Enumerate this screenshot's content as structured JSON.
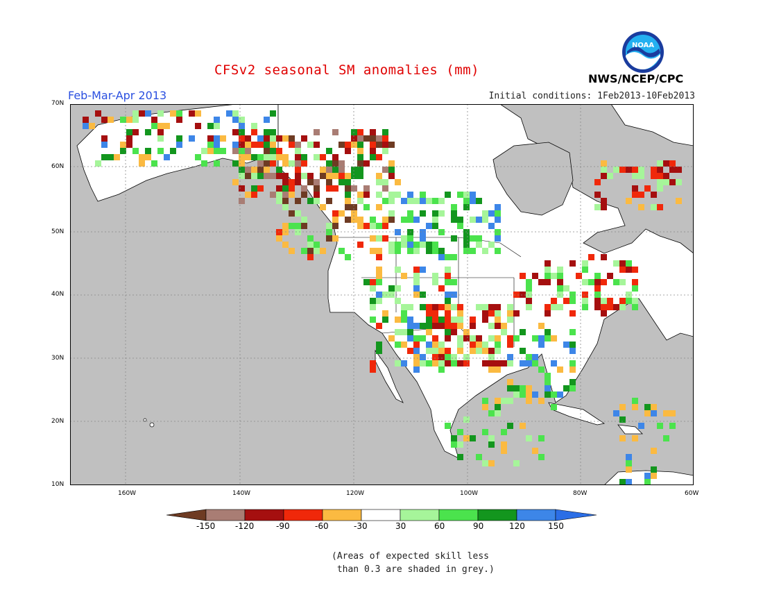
{
  "title": "CFSv2 seasonal SM anomalies (mm)",
  "period": "Feb-Mar-Apr 2013",
  "initial_conditions": "Initial conditions: 1Feb2013-10Feb2013",
  "organization": "NWS/NCEP/CPC",
  "logo_text": "NOAA",
  "lat_labels": [
    "70N",
    "60N",
    "50N",
    "40N",
    "30N",
    "20N",
    "10N"
  ],
  "lon_labels": [
    "160W",
    "140W",
    "120W",
    "100W",
    "80W",
    "60W"
  ],
  "legend": {
    "labels": [
      "-150",
      "-120",
      "-90",
      "-60",
      "-30",
      "30",
      "60",
      "90",
      "120",
      "150"
    ],
    "colors": [
      "#6e3b23",
      "#a97d74",
      "#a50f0f",
      "#f0280a",
      "#fbba41",
      "#ffffff",
      "#a6f59a",
      "#4be34d",
      "#13961e",
      "#3d86e8",
      "#2b6ee6"
    ]
  },
  "note_line1": "(Areas of expected skill less",
  "note_line2": " than 0.3 are shaded in grey.)",
  "colors": {
    "no_skill_grey": "#c0c0c0",
    "title_red": "#e00000",
    "period_blue": "#2a4fe0"
  }
}
